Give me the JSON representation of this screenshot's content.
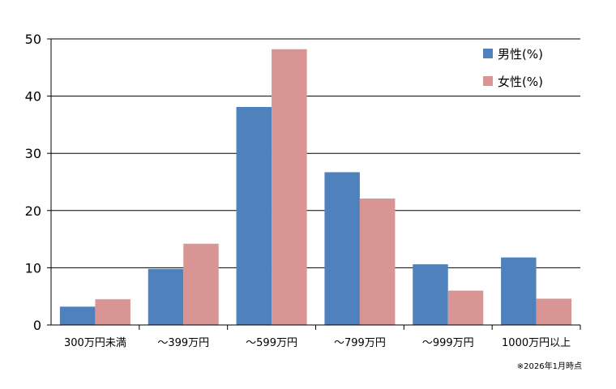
{
  "chart_data": {
    "type": "bar",
    "categories": [
      "300万円未満",
      "～399万円",
      "～599万円",
      "～799万円",
      "～999万円",
      "1000万円以上"
    ],
    "series": [
      {
        "name": "男性(%)",
        "color": "#4F81BD",
        "values": [
          3.2,
          9.8,
          38.1,
          26.7,
          10.6,
          11.8
        ]
      },
      {
        "name": "女性(%)",
        "color": "#D99594",
        "values": [
          4.5,
          14.2,
          48.2,
          22.1,
          6.0,
          4.6
        ]
      }
    ],
    "ylim": [
      0,
      50
    ],
    "yticks": [
      0,
      10,
      20,
      30,
      40,
      50
    ],
    "grid": true,
    "legend_position": "top-right",
    "note": "※2026年1月時点"
  }
}
